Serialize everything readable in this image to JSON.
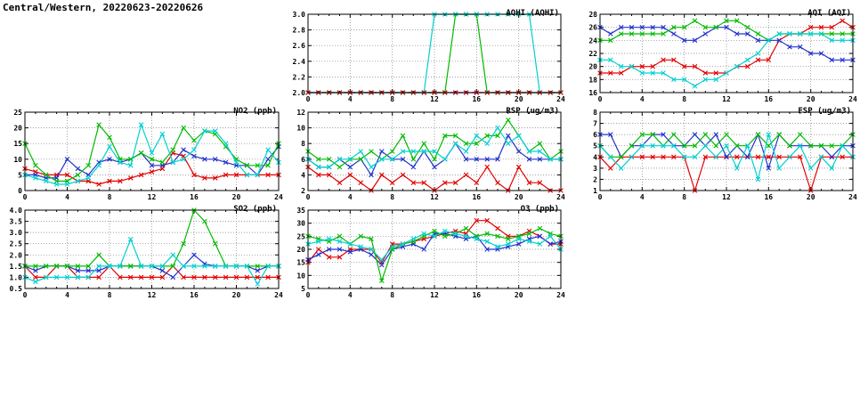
{
  "page_title": "Central/Western, 20220623-20220626",
  "colors": {
    "red": "#e10000",
    "blue": "#2233cc",
    "green": "#00bb00",
    "cyan": "#00d0d0",
    "axis": "#000000",
    "grid": "#808080"
  },
  "x_axis": {
    "min": 0,
    "max": 24,
    "ticks": [
      0,
      4,
      8,
      12,
      16,
      20,
      24
    ]
  },
  "chart_data": [
    {
      "id": "aqhi",
      "type": "line",
      "title": "AQHI (AQHI)",
      "ylim": [
        2.0,
        3.0
      ],
      "yticks": [
        2.0,
        2.2,
        2.4,
        2.6,
        2.8,
        3.0
      ],
      "ytick_labels": [
        "2.0",
        "2.2",
        "2.4",
        "2.6",
        "2.8",
        "3.0"
      ],
      "x": [
        0,
        1,
        2,
        3,
        4,
        5,
        6,
        7,
        8,
        9,
        10,
        11,
        12,
        13,
        14,
        15,
        16,
        17,
        18,
        19,
        20,
        21,
        22,
        23,
        24
      ],
      "series": [
        {
          "name": "blue",
          "color": "blue",
          "values": [
            2,
            2,
            2,
            2,
            2,
            2,
            2,
            2,
            2,
            2,
            2,
            2,
            2,
            2,
            2,
            2,
            2,
            2,
            2,
            2,
            2,
            2,
            2,
            2,
            2
          ]
        },
        {
          "name": "green",
          "color": "green",
          "values": [
            2,
            2,
            2,
            2,
            2,
            2,
            2,
            2,
            2,
            2,
            2,
            2,
            2,
            2,
            3,
            3,
            3,
            2,
            2,
            2,
            2,
            2,
            2,
            2,
            2
          ]
        },
        {
          "name": "cyan",
          "color": "cyan",
          "values": [
            2,
            2,
            2,
            2,
            2,
            2,
            2,
            2,
            2,
            2,
            2,
            2,
            3,
            3,
            3,
            3,
            3,
            3,
            3,
            3,
            3,
            3,
            2,
            2,
            2
          ]
        },
        {
          "name": "red",
          "color": "red",
          "dash": true,
          "values": [
            2,
            2,
            2,
            2,
            2,
            2,
            2,
            2,
            2,
            2,
            2,
            2,
            2,
            2,
            2,
            2,
            2,
            2,
            2,
            2,
            2,
            2,
            2,
            2,
            2
          ]
        }
      ]
    },
    {
      "id": "aqi",
      "type": "line",
      "title": "AQI (AQI)",
      "ylim": [
        16,
        28
      ],
      "yticks": [
        16,
        18,
        20,
        22,
        24,
        26,
        28
      ],
      "ytick_labels": [
        "16",
        "18",
        "20",
        "22",
        "24",
        "26",
        "28"
      ],
      "x": [
        0,
        1,
        2,
        3,
        4,
        5,
        6,
        7,
        8,
        9,
        10,
        11,
        12,
        13,
        14,
        15,
        16,
        17,
        18,
        19,
        20,
        21,
        22,
        23,
        24
      ],
      "series": [
        {
          "name": "red",
          "color": "red",
          "values": [
            19,
            19,
            19,
            20,
            20,
            20,
            21,
            21,
            20,
            20,
            19,
            19,
            19,
            20,
            20,
            21,
            21,
            24,
            25,
            25,
            26,
            26,
            26,
            27,
            26
          ]
        },
        {
          "name": "blue",
          "color": "blue",
          "values": [
            26,
            25,
            26,
            26,
            26,
            26,
            26,
            25,
            24,
            24,
            25,
            26,
            26,
            25,
            25,
            24,
            24,
            24,
            23,
            23,
            22,
            22,
            21,
            21,
            21
          ]
        },
        {
          "name": "green",
          "color": "green",
          "values": [
            24,
            24,
            25,
            25,
            25,
            25,
            25,
            26,
            26,
            27,
            26,
            26,
            27,
            27,
            26,
            25,
            24,
            25,
            25,
            25,
            25,
            25,
            25,
            25,
            25
          ]
        },
        {
          "name": "cyan",
          "color": "cyan",
          "values": [
            21,
            21,
            20,
            20,
            19,
            19,
            19,
            18,
            18,
            17,
            18,
            18,
            19,
            20,
            21,
            22,
            24,
            25,
            25,
            25,
            25,
            25,
            24,
            24,
            24
          ]
        }
      ]
    },
    {
      "id": "no2",
      "type": "line",
      "title": "NO2 (ppb)",
      "ylim": [
        0,
        25
      ],
      "yticks": [
        0,
        5,
        10,
        15,
        20,
        25
      ],
      "ytick_labels": [
        "0",
        "5",
        "10",
        "15",
        "20",
        "25"
      ],
      "x": [
        0,
        1,
        2,
        3,
        4,
        5,
        6,
        7,
        8,
        9,
        10,
        11,
        12,
        13,
        14,
        15,
        16,
        17,
        18,
        19,
        20,
        21,
        22,
        23,
        24
      ],
      "series": [
        {
          "name": "red",
          "color": "red",
          "values": [
            7,
            6,
            5,
            5,
            5,
            3,
            3,
            2,
            3,
            3,
            4,
            5,
            6,
            7,
            12,
            11,
            5,
            4,
            4,
            5,
            5,
            5,
            5,
            5,
            5
          ]
        },
        {
          "name": "blue",
          "color": "blue",
          "values": [
            5,
            5,
            4,
            4,
            10,
            7,
            5,
            9,
            10,
            9,
            10,
            12,
            8,
            8,
            9,
            13,
            11,
            10,
            10,
            9,
            8,
            8,
            5,
            10,
            14
          ]
        },
        {
          "name": "green",
          "color": "green",
          "values": [
            15,
            8,
            5,
            3,
            3,
            5,
            8,
            21,
            17,
            10,
            10,
            12,
            10,
            9,
            13,
            20,
            16,
            19,
            18,
            14,
            10,
            8,
            8,
            8,
            15
          ]
        },
        {
          "name": "cyan",
          "color": "cyan",
          "values": [
            5,
            4,
            3,
            2,
            2,
            3,
            4,
            8,
            14,
            9,
            8,
            21,
            12,
            18,
            9,
            10,
            13,
            19,
            19,
            15,
            9,
            5,
            5,
            13,
            9
          ]
        }
      ]
    },
    {
      "id": "rsp",
      "type": "line",
      "title": "RSP (ug/m3)",
      "ylim": [
        2,
        12
      ],
      "yticks": [
        2,
        4,
        6,
        8,
        10,
        12
      ],
      "ytick_labels": [
        "2",
        "4",
        "6",
        "8",
        "10",
        "12"
      ],
      "x": [
        0,
        1,
        2,
        3,
        4,
        5,
        6,
        7,
        8,
        9,
        10,
        11,
        12,
        13,
        14,
        15,
        16,
        17,
        18,
        19,
        20,
        21,
        22,
        23,
        24
      ],
      "series": [
        {
          "name": "red",
          "color": "red",
          "values": [
            5,
            4,
            4,
            3,
            4,
            3,
            2,
            4,
            3,
            4,
            3,
            3,
            2,
            3,
            3,
            4,
            3,
            5,
            3,
            2,
            5,
            3,
            3,
            2,
            2
          ]
        },
        {
          "name": "blue",
          "color": "blue",
          "values": [
            6,
            5,
            5,
            6,
            5,
            6,
            4,
            7,
            6,
            6,
            5,
            7,
            5,
            6,
            8,
            6,
            6,
            6,
            6,
            9,
            7,
            6,
            6,
            6,
            6
          ]
        },
        {
          "name": "green",
          "color": "green",
          "values": [
            7,
            6,
            6,
            5,
            6,
            6,
            7,
            6,
            7,
            9,
            6,
            8,
            6,
            9,
            9,
            8,
            8,
            9,
            9,
            11,
            9,
            7,
            8,
            6,
            7
          ]
        },
        {
          "name": "cyan",
          "color": "cyan",
          "values": [
            6,
            5,
            5,
            6,
            6,
            7,
            5,
            6,
            6,
            7,
            7,
            7,
            7,
            6,
            8,
            7,
            9,
            8,
            10,
            8,
            9,
            7,
            7,
            6,
            6
          ]
        }
      ]
    },
    {
      "id": "fsp",
      "type": "line",
      "title": "FSP (ug/m3)",
      "ylim": [
        1,
        8
      ],
      "yticks": [
        1,
        2,
        3,
        4,
        5,
        6,
        7,
        8
      ],
      "ytick_labels": [
        "1",
        "2",
        "3",
        "4",
        "5",
        "6",
        "7",
        "8"
      ],
      "x": [
        0,
        1,
        2,
        3,
        4,
        5,
        6,
        7,
        8,
        9,
        10,
        11,
        12,
        13,
        14,
        15,
        16,
        17,
        18,
        19,
        20,
        21,
        22,
        23,
        24
      ],
      "series": [
        {
          "name": "red",
          "color": "red",
          "values": [
            4,
            3,
            4,
            4,
            4,
            4,
            4,
            4,
            4,
            1,
            4,
            4,
            4,
            4,
            4,
            4,
            4,
            4,
            4,
            4,
            1,
            4,
            4,
            4,
            4
          ]
        },
        {
          "name": "blue",
          "color": "blue",
          "values": [
            6,
            6,
            4,
            5,
            5,
            6,
            6,
            5,
            5,
            6,
            5,
            6,
            4,
            5,
            4,
            6,
            3,
            6,
            5,
            5,
            5,
            5,
            4,
            5,
            5
          ]
        },
        {
          "name": "green",
          "color": "green",
          "values": [
            5,
            4,
            4,
            5,
            6,
            6,
            5,
            6,
            5,
            5,
            6,
            5,
            6,
            5,
            5,
            6,
            5,
            6,
            5,
            6,
            5,
            5,
            5,
            5,
            6
          ]
        },
        {
          "name": "cyan",
          "color": "cyan",
          "values": [
            5,
            4,
            3,
            4,
            5,
            5,
            5,
            5,
            4,
            4,
            5,
            4,
            5,
            3,
            5,
            2,
            6,
            3,
            4,
            5,
            3,
            4,
            3,
            5,
            4
          ]
        }
      ]
    },
    {
      "id": "so2",
      "type": "line",
      "title": "SO2 (ppb)",
      "ylim": [
        0.5,
        4.0
      ],
      "yticks": [
        0.5,
        1.0,
        1.5,
        2.0,
        2.5,
        3.0,
        3.5,
        4.0
      ],
      "ytick_labels": [
        "0.5",
        "1.0",
        "1.5",
        "2.0",
        "2.5",
        "3.0",
        "3.5",
        "4.0"
      ],
      "x": [
        0,
        1,
        2,
        3,
        4,
        5,
        6,
        7,
        8,
        9,
        10,
        11,
        12,
        13,
        14,
        15,
        16,
        17,
        18,
        19,
        20,
        21,
        22,
        23,
        24
      ],
      "series": [
        {
          "name": "red",
          "color": "red",
          "values": [
            1.5,
            1.0,
            1.0,
            1.5,
            1.5,
            1.0,
            1.0,
            1.0,
            1.5,
            1.0,
            1.0,
            1.0,
            1.0,
            1.0,
            1.5,
            1.0,
            1.0,
            1.0,
            1.0,
            1.0,
            1.0,
            1.0,
            1.0,
            1.0,
            1.0
          ]
        },
        {
          "name": "blue",
          "color": "blue",
          "values": [
            1.5,
            1.3,
            1.5,
            1.5,
            1.5,
            1.3,
            1.3,
            1.3,
            1.5,
            1.5,
            1.5,
            1.5,
            1.5,
            1.3,
            1.0,
            1.5,
            2.0,
            1.6,
            1.5,
            1.5,
            1.5,
            1.5,
            1.3,
            1.5,
            1.5
          ]
        },
        {
          "name": "green",
          "color": "green",
          "values": [
            1.5,
            1.5,
            1.5,
            1.5,
            1.5,
            1.5,
            1.5,
            2.0,
            1.5,
            1.5,
            1.5,
            1.5,
            1.5,
            1.5,
            1.5,
            2.5,
            4.0,
            3.5,
            2.5,
            1.5,
            1.5,
            1.5,
            1.5,
            1.5,
            1.5
          ]
        },
        {
          "name": "cyan",
          "color": "cyan",
          "values": [
            1.0,
            0.8,
            1.0,
            1.0,
            1.0,
            1.0,
            1.0,
            1.5,
            1.5,
            1.5,
            2.7,
            1.5,
            1.5,
            1.5,
            2.0,
            1.5,
            1.5,
            1.5,
            1.5,
            1.5,
            1.5,
            1.5,
            0.7,
            1.5,
            1.5
          ]
        }
      ]
    },
    {
      "id": "o3",
      "type": "line",
      "title": "O3 (ppb)",
      "ylim": [
        5,
        35
      ],
      "yticks": [
        5,
        10,
        15,
        20,
        25,
        30,
        35
      ],
      "ytick_labels": [
        "5",
        "10",
        "15",
        "20",
        "25",
        "30",
        "35"
      ],
      "x": [
        0,
        1,
        2,
        3,
        4,
        5,
        6,
        7,
        8,
        9,
        10,
        11,
        12,
        13,
        14,
        15,
        16,
        17,
        18,
        19,
        20,
        21,
        22,
        23,
        24
      ],
      "series": [
        {
          "name": "red",
          "color": "red",
          "values": [
            15,
            20,
            17,
            17,
            20,
            20,
            20,
            15,
            22,
            22,
            23,
            24,
            25,
            26,
            27,
            26,
            31,
            31,
            28,
            25,
            25,
            27,
            25,
            22,
            22
          ]
        },
        {
          "name": "blue",
          "color": "blue",
          "values": [
            16,
            18,
            20,
            20,
            19,
            20,
            18,
            14,
            20,
            21,
            22,
            20,
            26,
            26,
            25,
            24,
            25,
            20,
            20,
            21,
            22,
            24,
            25,
            22,
            23
          ]
        },
        {
          "name": "green",
          "color": "green",
          "values": [
            25,
            24,
            23,
            25,
            22,
            25,
            24,
            8,
            20,
            22,
            23,
            25,
            27,
            25,
            26,
            28,
            25,
            26,
            25,
            24,
            25,
            26,
            28,
            26,
            25
          ]
        },
        {
          "name": "cyan",
          "color": "cyan",
          "values": [
            22,
            23,
            24,
            23,
            22,
            21,
            20,
            16,
            21,
            22,
            24,
            26,
            25,
            27,
            26,
            25,
            24,
            23,
            21,
            22,
            24,
            23,
            22,
            25,
            20
          ]
        }
      ]
    }
  ]
}
